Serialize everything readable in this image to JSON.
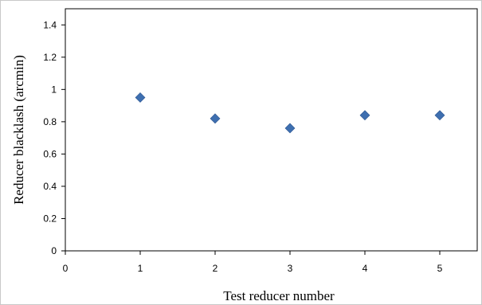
{
  "chart_data": {
    "type": "scatter",
    "title": "",
    "xlabel": "Test reducer number",
    "ylabel": "Reducer blacklash (arcmin)",
    "xlim": [
      0,
      5.5
    ],
    "ylim": [
      0,
      1.5
    ],
    "xticks": [
      0,
      1,
      2,
      3,
      4,
      5
    ],
    "yticks": [
      0,
      0.2,
      0.4,
      0.6,
      0.8,
      1,
      1.2,
      1.4
    ],
    "ytick_labels": [
      "0",
      "0.2",
      "0.4",
      "0.6",
      "0.8",
      "1",
      "1.2",
      "1.4"
    ],
    "grid": false,
    "legend": "none",
    "marker": "diamond",
    "marker_color": "#3E6FB0",
    "series": [
      {
        "x": [
          1,
          2,
          3,
          4,
          5
        ],
        "y": [
          0.95,
          0.82,
          0.76,
          0.84,
          0.84
        ]
      }
    ]
  }
}
